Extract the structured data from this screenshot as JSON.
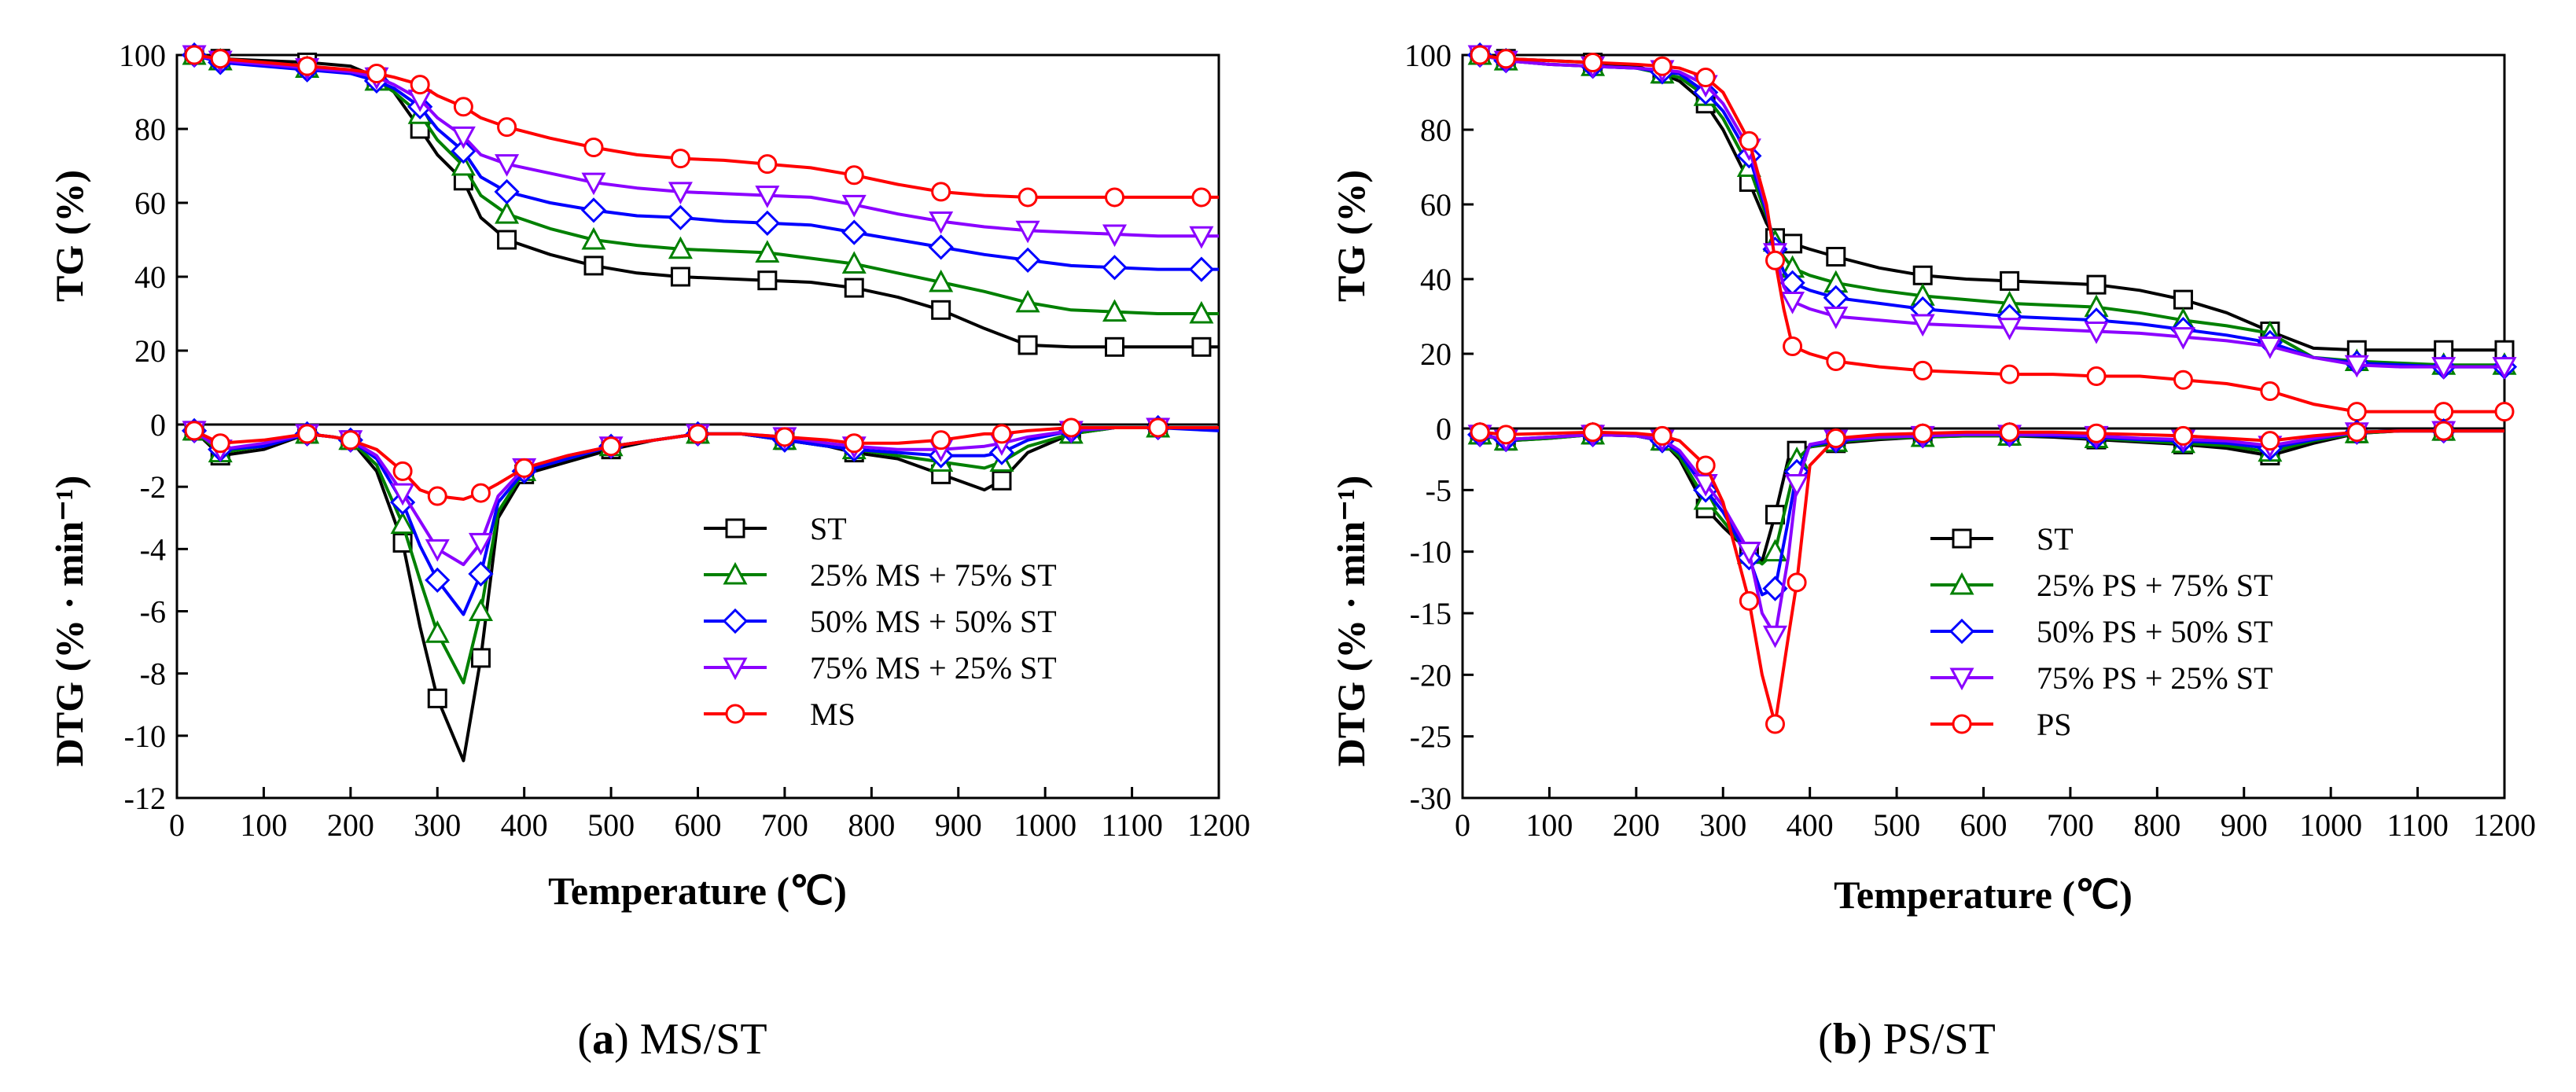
{
  "legend_colors": [
    "#000000",
    "#008000",
    "#0000ff",
    "#8b00ff",
    "#ff0000"
  ],
  "legend_markers": [
    "square",
    "triangle-up",
    "diamond",
    "triangle-down",
    "circle"
  ],
  "chart_data": [
    {
      "type": "line",
      "panel": "a",
      "caption_label": "a",
      "caption_text": " MS/ST",
      "xlabel": "Temperature (℃)",
      "xlim": [
        0,
        1200
      ],
      "xticks": [
        0,
        100,
        200,
        300,
        400,
        500,
        600,
        700,
        800,
        900,
        1000,
        1100,
        1200
      ],
      "tg": {
        "ylabel": "TG (%)",
        "ylim": [
          0,
          100
        ],
        "yticks": [
          20,
          40,
          60,
          80,
          100
        ],
        "x": [
          20,
          50,
          100,
          150,
          200,
          230,
          250,
          280,
          300,
          330,
          350,
          380,
          430,
          480,
          530,
          580,
          630,
          680,
          730,
          780,
          830,
          880,
          930,
          980,
          1030,
          1080,
          1130,
          1180,
          1200
        ],
        "series": [
          {
            "name": "ST",
            "values": [
              100,
              99,
              98.5,
              98,
              97,
              94,
              90,
              80,
              73,
              66,
              56,
              50,
              46,
              43,
              41,
              40,
              39.5,
              39,
              38.5,
              37,
              34.5,
              31,
              26,
              21.5,
              21,
              21,
              21,
              21,
              21
            ]
          },
          {
            "name": "25% MS + 75% ST",
            "values": [
              100,
              98.5,
              97.5,
              96.5,
              95.5,
              93,
              90,
              84,
              77,
              70,
              62,
              57,
              53,
              50,
              48.5,
              47.5,
              47,
              46.5,
              45,
              43.5,
              41,
              38.5,
              36,
              33,
              31,
              30.5,
              30,
              30,
              30
            ]
          },
          {
            "name": "50% MS + 50% ST",
            "values": [
              100,
              98,
              97,
              96,
              95,
              93,
              91,
              86,
              80,
              74,
              67,
              63,
              60,
              58,
              56.5,
              56,
              55,
              54.5,
              54,
              52,
              50,
              48,
              46,
              44.5,
              43,
              42.5,
              42,
              42,
              42
            ]
          },
          {
            "name": "75% MS + 25% ST",
            "values": [
              100,
              98.5,
              97.5,
              96.5,
              95.5,
              94,
              92,
              88,
              83,
              78,
              73,
              70.5,
              68,
              65.5,
              64,
              63,
              62.5,
              62,
              61.5,
              59.5,
              57,
              55,
              53.5,
              52.5,
              52,
              51.5,
              51,
              51,
              51
            ]
          },
          {
            "name": "MS",
            "values": [
              100,
              99,
              98,
              97,
              96,
              95,
              94,
              92,
              89,
              86,
              83,
              80.5,
              77.5,
              75,
              73,
              72,
              71.5,
              70.5,
              69.5,
              67.5,
              65,
              63,
              62,
              61.5,
              61.5,
              61.5,
              61.5,
              61.5,
              61.5
            ]
          }
        ]
      },
      "dtg": {
        "ylabel": "DTG (% · min⁻¹)",
        "ylim": [
          -12,
          0
        ],
        "yticks": [
          0,
          -2,
          -4,
          -6,
          -8,
          -10,
          -12
        ],
        "x": [
          20,
          50,
          100,
          150,
          180,
          200,
          230,
          260,
          280,
          300,
          330,
          350,
          370,
          400,
          450,
          500,
          550,
          600,
          650,
          700,
          750,
          780,
          830,
          880,
          930,
          950,
          980,
          1030,
          1080,
          1130,
          1200
        ],
        "series": [
          {
            "name": "ST",
            "values": [
              -0.2,
              -1.0,
              -0.8,
              -0.3,
              -0.4,
              -0.5,
              -1.5,
              -3.8,
              -6.5,
              -8.8,
              -10.8,
              -7.5,
              -3.0,
              -1.6,
              -1.2,
              -0.8,
              -0.5,
              -0.3,
              -0.3,
              -0.5,
              -0.7,
              -0.9,
              -1.1,
              -1.6,
              -2.1,
              -1.8,
              -0.9,
              -0.3,
              -0.1,
              -0.1,
              -0.1
            ]
          },
          {
            "name": "25% MS + 75% ST",
            "values": [
              -0.2,
              -0.9,
              -0.7,
              -0.3,
              -0.4,
              -0.5,
              -1.3,
              -3.2,
              -5.0,
              -6.7,
              -8.3,
              -6.0,
              -2.8,
              -1.5,
              -1.1,
              -0.7,
              -0.5,
              -0.3,
              -0.3,
              -0.5,
              -0.7,
              -0.8,
              -1.0,
              -1.2,
              -1.4,
              -1.2,
              -0.7,
              -0.3,
              -0.1,
              -0.1,
              -0.1
            ]
          },
          {
            "name": "50% MS + 50% ST",
            "values": [
              -0.2,
              -0.8,
              -0.7,
              -0.3,
              -0.4,
              -0.5,
              -1.1,
              -2.5,
              -3.9,
              -5.0,
              -6.1,
              -4.8,
              -2.5,
              -1.5,
              -1.1,
              -0.7,
              -0.5,
              -0.3,
              -0.3,
              -0.5,
              -0.7,
              -0.8,
              -0.9,
              -1.0,
              -1.0,
              -0.9,
              -0.5,
              -0.2,
              -0.1,
              -0.1,
              -0.2
            ]
          },
          {
            "name": "75% MS + 25% ST",
            "values": [
              -0.2,
              -0.8,
              -0.6,
              -0.3,
              -0.4,
              -0.5,
              -1.0,
              -2.2,
              -3.1,
              -4.0,
              -4.5,
              -3.8,
              -2.3,
              -1.4,
              -1.0,
              -0.7,
              -0.5,
              -0.3,
              -0.3,
              -0.4,
              -0.6,
              -0.7,
              -0.8,
              -0.8,
              -0.7,
              -0.6,
              -0.4,
              -0.2,
              -0.1,
              -0.1,
              -0.1
            ]
          },
          {
            "name": "MS",
            "values": [
              -0.2,
              -0.6,
              -0.5,
              -0.3,
              -0.4,
              -0.5,
              -0.8,
              -1.5,
              -2.1,
              -2.3,
              -2.4,
              -2.2,
              -1.9,
              -1.4,
              -1.0,
              -0.7,
              -0.5,
              -0.3,
              -0.3,
              -0.4,
              -0.5,
              -0.6,
              -0.6,
              -0.5,
              -0.3,
              -0.3,
              -0.2,
              -0.1,
              -0.1,
              -0.1,
              -0.1
            ]
          }
        ]
      }
    },
    {
      "type": "line",
      "panel": "b",
      "caption_label": "b",
      "caption_text": " PS/ST",
      "xlabel": "Temperature (℃)",
      "xlim": [
        0,
        1200
      ],
      "xticks": [
        0,
        100,
        200,
        300,
        400,
        500,
        600,
        700,
        800,
        900,
        1000,
        1100,
        1200
      ],
      "tg": {
        "ylabel": "TG (%)",
        "ylim": [
          0,
          100
        ],
        "yticks": [
          20,
          40,
          60,
          80,
          100
        ],
        "x": [
          20,
          50,
          100,
          150,
          200,
          230,
          250,
          280,
          300,
          330,
          350,
          360,
          370,
          380,
          400,
          430,
          480,
          530,
          580,
          630,
          680,
          730,
          780,
          830,
          880,
          930,
          980,
          1030,
          1080,
          1130,
          1180,
          1200
        ],
        "series": [
          {
            "name": "ST",
            "values": [
              100,
              99,
              98.5,
              98,
              97,
              95,
              93,
              87,
              80,
              66,
              55,
              51,
              50,
              49.5,
              48,
              46,
              43,
              41,
              40,
              39.5,
              39,
              38.5,
              37,
              34.5,
              31,
              26,
              21.5,
              21,
              21,
              21,
              21,
              21
            ]
          },
          {
            "name": "25% PS + 75% ST",
            "values": [
              100,
              98.5,
              97.5,
              97,
              96.5,
              95,
              94,
              89,
              83,
              70,
              57,
              50,
              46,
              43,
              41,
              39,
              37,
              35.5,
              34.5,
              33.5,
              33,
              32.5,
              31,
              29,
              27.5,
              25.5,
              19,
              18,
              17.5,
              17,
              17,
              17
            ]
          },
          {
            "name": "50% PS + 50% ST",
            "values": [
              100,
              98.5,
              97.5,
              97,
              96.5,
              95.5,
              95,
              90,
              85,
              73,
              58,
              48,
              42,
              39,
              37,
              35,
              33.5,
              32,
              31,
              30,
              29.5,
              29,
              28,
              26.5,
              25,
              23,
              19,
              17.5,
              17,
              16.5,
              16.5,
              16.5
            ]
          },
          {
            "name": "75% PS + 25% ST",
            "values": [
              100,
              98.5,
              97.5,
              97,
              96.5,
              96,
              95.5,
              92,
              87,
              75,
              59,
              47,
              38,
              34,
              32,
              30,
              29,
              28,
              27.5,
              27,
              26.5,
              26,
              25.5,
              24.5,
              23.5,
              22,
              19,
              17,
              16.5,
              16.5,
              16.5,
              16.5
            ]
          },
          {
            "name": "PS",
            "values": [
              100,
              99,
              98.5,
              98,
              97.5,
              97,
              96.5,
              94,
              90,
              77,
              60,
              45,
              32,
              22,
              20,
              18,
              16.5,
              15.5,
              15,
              14.5,
              14.5,
              14,
              14,
              13,
              12,
              10,
              6.5,
              4.5,
              4.5,
              4.5,
              4.5,
              4.5
            ]
          }
        ]
      },
      "dtg": {
        "ylabel": "DTG (% · min⁻¹)",
        "ylim": [
          -30,
          0
        ],
        "yticks": [
          0,
          -5,
          -10,
          -15,
          -20,
          -25,
          -30
        ],
        "x": [
          20,
          50,
          100,
          150,
          200,
          230,
          250,
          280,
          300,
          330,
          345,
          360,
          375,
          385,
          400,
          430,
          480,
          530,
          580,
          630,
          680,
          730,
          780,
          830,
          880,
          930,
          980,
          1030,
          1080,
          1130,
          1200
        ],
        "series": [
          {
            "name": "ST",
            "values": [
              -0.5,
              -1.0,
              -0.8,
              -0.5,
              -0.6,
              -1.0,
              -2.5,
              -6.5,
              -8.0,
              -10.0,
              -10.8,
              -7.0,
              -2.5,
              -1.8,
              -1.5,
              -1.2,
              -0.9,
              -0.7,
              -0.6,
              -0.6,
              -0.7,
              -0.9,
              -1.1,
              -1.3,
              -1.6,
              -2.2,
              -1.2,
              -0.4,
              -0.2,
              -0.2,
              -0.2
            ]
          },
          {
            "name": "25% PS + 75% ST",
            "values": [
              -0.5,
              -1.0,
              -0.8,
              -0.5,
              -0.6,
              -1.0,
              -2.3,
              -5.8,
              -7.5,
              -10.2,
              -11.0,
              -10.0,
              -5.5,
              -2.5,
              -1.5,
              -1.1,
              -0.8,
              -0.7,
              -0.6,
              -0.6,
              -0.6,
              -0.8,
              -1.0,
              -1.2,
              -1.4,
              -1.9,
              -1.0,
              -0.4,
              -0.2,
              -0.2,
              -0.2
            ]
          },
          {
            "name": "50% PS + 50% ST",
            "values": [
              -0.5,
              -0.9,
              -0.7,
              -0.5,
              -0.6,
              -1.0,
              -2.0,
              -5.0,
              -6.8,
              -10.5,
              -13.5,
              -13.0,
              -7.5,
              -3.5,
              -1.4,
              -1.0,
              -0.7,
              -0.6,
              -0.5,
              -0.5,
              -0.6,
              -0.7,
              -0.9,
              -1.0,
              -1.2,
              -1.6,
              -0.9,
              -0.3,
              -0.2,
              -0.2,
              -0.2
            ]
          },
          {
            "name": "75% PS + 25% ST",
            "values": [
              -0.5,
              -0.9,
              -0.7,
              -0.5,
              -0.6,
              -0.9,
              -1.8,
              -4.5,
              -6.3,
              -10.0,
              -15.0,
              -16.8,
              -10.5,
              -4.5,
              -1.3,
              -0.9,
              -0.7,
              -0.6,
              -0.5,
              -0.5,
              -0.5,
              -0.6,
              -0.8,
              -0.9,
              -1.0,
              -1.4,
              -0.8,
              -0.3,
              -0.2,
              -0.2,
              -0.2
            ]
          },
          {
            "name": "PS",
            "values": [
              -0.3,
              -0.5,
              -0.4,
              -0.3,
              -0.4,
              -0.6,
              -1.0,
              -3.0,
              -6.0,
              -14.0,
              -20.0,
              -24.0,
              -17.0,
              -12.5,
              -3.0,
              -0.8,
              -0.5,
              -0.4,
              -0.3,
              -0.3,
              -0.3,
              -0.4,
              -0.5,
              -0.6,
              -0.8,
              -1.0,
              -0.6,
              -0.3,
              -0.2,
              -0.2,
              -0.2
            ]
          }
        ]
      }
    }
  ]
}
